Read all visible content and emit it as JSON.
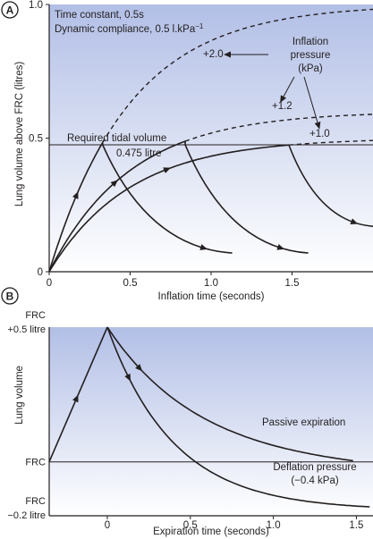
{
  "chart_data": [
    {
      "panel": "A",
      "type": "line",
      "xlabel": "Inflation time (seconds)",
      "ylabel": "Lung volume above FRC (litres)",
      "xlim": [
        0,
        2.0
      ],
      "ylim": [
        0,
        1.0
      ],
      "x_ticks": [
        {
          "v": 0,
          "label": "0"
        },
        {
          "v": 0.5,
          "label": "0.5"
        },
        {
          "v": 1.0,
          "label": "1.0"
        },
        {
          "v": 1.5,
          "label": "1.5"
        }
      ],
      "y_ticks": [
        {
          "v": 0,
          "label": "0"
        },
        {
          "v": 0.5,
          "label": "0.5"
        },
        {
          "v": 1.0,
          "label": "1.0"
        }
      ],
      "background_gradient": [
        "#b2bfe6",
        "#ffffff"
      ],
      "notes": [
        "Time constant, 0.5s",
        "Dynamic compliance, 0.5 l.kPa"
      ],
      "note_superscript": "−1",
      "reference_line": {
        "y": 0.475,
        "label": "Required tidal volume",
        "value_label": "0.475 litre"
      },
      "inflation_legend": {
        "lines": [
          "Inflation",
          "pressure",
          "(kPa)"
        ]
      },
      "series": [
        {
          "name": "+2.0",
          "time_constant": 0.5,
          "asymptote": 1.0,
          "reaches_target_at": 0.33
        },
        {
          "name": "+1.2",
          "time_constant": 0.5,
          "asymptote": 0.6,
          "reaches_target_at": 0.84
        },
        {
          "name": "+1.0",
          "time_constant": 0.5,
          "asymptote": 0.5,
          "reaches_target_at": 1.48
        }
      ],
      "expiration_segments": [
        {
          "start": [
            0.33,
            0.475
          ],
          "end": [
            1.13,
            0.07
          ]
        },
        {
          "start": [
            0.84,
            0.475
          ],
          "end": [
            1.6,
            0.07
          ]
        },
        {
          "start": [
            1.48,
            0.475
          ],
          "end": [
            2.0,
            0.17
          ]
        }
      ]
    },
    {
      "panel": "B",
      "type": "line",
      "xlabel": "Expiration time (seconds)",
      "ylabel": "Lung volume",
      "xlim": [
        -0.35,
        1.6
      ],
      "ylim": [
        -0.2,
        0.5
      ],
      "x_ticks": [
        {
          "v": 0,
          "label": "0"
        },
        {
          "v": 0.5,
          "label": "0.5"
        },
        {
          "v": 1.0,
          "label": "1.0"
        },
        {
          "v": 1.5,
          "label": "1.5"
        }
      ],
      "y_ticks": [
        {
          "v": 0.5,
          "lines": [
            "FRC",
            "+0.5 litre"
          ]
        },
        {
          "v": 0.0,
          "lines": [
            "FRC"
          ]
        },
        {
          "v": -0.2,
          "lines": [
            "FRC",
            "−0.2 litre"
          ]
        }
      ],
      "background_gradient": [
        "#b2bfe6",
        "#ffffff"
      ],
      "series": [
        {
          "name": "Passive expiration",
          "points": [
            [
              -0.35,
              0.0
            ],
            [
              0.0,
              0.5
            ],
            [
              0.25,
              0.34
            ],
            [
              0.5,
              0.22
            ],
            [
              0.75,
              0.14
            ],
            [
              1.0,
              0.09
            ],
            [
              1.25,
              0.05
            ],
            [
              1.5,
              0.02
            ]
          ]
        },
        {
          "name": "Deflation pressure",
          "sublabel": "(−0.4 kPa)",
          "points": [
            [
              0.0,
              0.5
            ],
            [
              0.25,
              0.23
            ],
            [
              0.5,
              0.05
            ],
            [
              0.75,
              -0.06
            ],
            [
              1.0,
              -0.12
            ],
            [
              1.25,
              -0.155
            ],
            [
              1.5,
              -0.17
            ],
            [
              1.6,
              -0.175
            ]
          ]
        }
      ]
    }
  ],
  "panel_labels": [
    "A",
    "B"
  ]
}
